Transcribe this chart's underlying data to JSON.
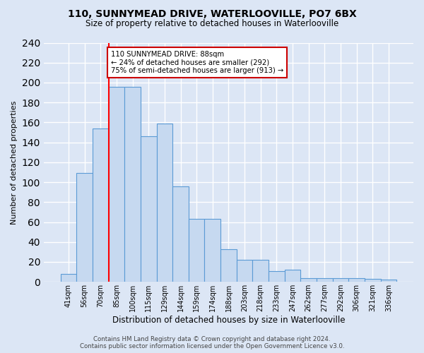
{
  "title": "110, SUNNYMEAD DRIVE, WATERLOOVILLE, PO7 6BX",
  "subtitle": "Size of property relative to detached houses in Waterlooville",
  "xlabel": "Distribution of detached houses by size in Waterlooville",
  "ylabel": "Number of detached properties",
  "bar_values": [
    8,
    109,
    154,
    196,
    196,
    146,
    159,
    96,
    63,
    63,
    33,
    22,
    22,
    11,
    12,
    4,
    4,
    4,
    4,
    3,
    2
  ],
  "bar_labels": [
    "41sqm",
    "56sqm",
    "70sqm",
    "85sqm",
    "100sqm",
    "115sqm",
    "129sqm",
    "144sqm",
    "159sqm",
    "174sqm",
    "188sqm",
    "203sqm",
    "218sqm",
    "233sqm",
    "247sqm",
    "262sqm",
    "277sqm",
    "292sqm",
    "306sqm",
    "321sqm",
    "336sqm"
  ],
  "bar_color": "#c6d9f0",
  "bar_edge_color": "#5b9bd5",
  "background_color": "#dce6f5",
  "grid_color": "#ffffff",
  "red_line_index": 3,
  "annotation_line1": "110 SUNNYMEAD DRIVE: 88sqm",
  "annotation_line2": "← 24% of detached houses are smaller (292)",
  "annotation_line3": "75% of semi-detached houses are larger (913) →",
  "annotation_box_color": "#ffffff",
  "annotation_box_edge_color": "#cc0000",
  "footer_text": "Contains HM Land Registry data © Crown copyright and database right 2024.\nContains public sector information licensed under the Open Government Licence v3.0.",
  "ylim": [
    0,
    240
  ],
  "yticks": [
    0,
    20,
    40,
    60,
    80,
    100,
    120,
    140,
    160,
    180,
    200,
    220,
    240
  ]
}
